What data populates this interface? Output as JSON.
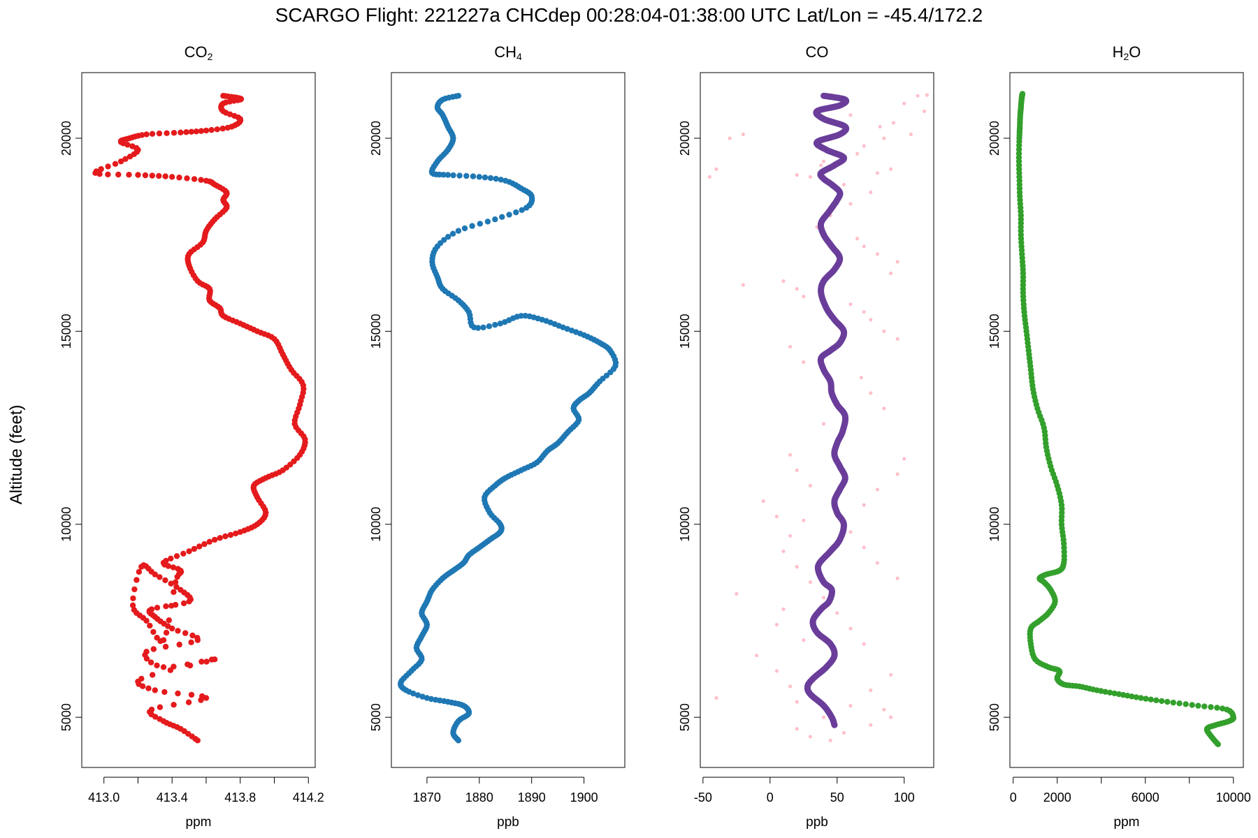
{
  "title": "SCARGO Flight: 221227a  CHCdep  00:28:04-01:38:00 UTC  Lat/Lon = -45.4/172.2",
  "ylabel": "Altitude (feet)",
  "chart_data": [
    {
      "type": "scatter",
      "title": "CO2",
      "title_main": "CO",
      "title_sub": "2",
      "xlabel": "ppm",
      "ylabel": "Altitude (feet)",
      "xlim": [
        412.87,
        414.24
      ],
      "ylim": [
        3700,
        21700
      ],
      "xticks": [
        413.0,
        413.4,
        413.8,
        414.2
      ],
      "xtick_labels": [
        "413.0",
        "413.4",
        "413.8",
        "414.2"
      ],
      "xticks_minor": [
        413.2,
        413.6,
        414.0
      ],
      "yticks": [
        5000,
        10000,
        15000,
        20000
      ],
      "ytick_labels": [
        "5000",
        "10000",
        "15000",
        "20000"
      ],
      "colors": [
        "#e41a1c"
      ],
      "series": [
        {
          "x": [
            413.55,
            413.45,
            413.35,
            413.28,
            413.6,
            413.3,
            413.22,
            413.65,
            413.35,
            413.25,
            413.55,
            413.4,
            413.3,
            413.28,
            413.5,
            413.45,
            413.3,
            413.22,
            413.17,
            413.25,
            413.35,
            413.42,
            413.45,
            413.35,
            413.5,
            413.65,
            413.8,
            413.9,
            413.95,
            413.9,
            413.88,
            413.95,
            414.05,
            414.15,
            414.18,
            414.12,
            414.15,
            414.17,
            414.1,
            414.05,
            414.0,
            413.9,
            413.8,
            413.7,
            413.68,
            413.62,
            413.62,
            413.55,
            413.5,
            413.5,
            413.58,
            413.6,
            413.65,
            413.72,
            413.7,
            413.72,
            413.65,
            413.6,
            413.4,
            413.2,
            412.95,
            413.1,
            413.2,
            413.1,
            413.15,
            413.25,
            413.45,
            413.6,
            413.75,
            413.8,
            413.7,
            413.7,
            413.8,
            413.78,
            413.7
          ],
          "y": [
            4400,
            4700,
            4900,
            5200,
            5500,
            5700,
            6000,
            6500,
            6300,
            6700,
            7000,
            7300,
            7600,
            7800,
            8000,
            8300,
            8700,
            8900,
            7900,
            7500,
            7000,
            8500,
            8800,
            9000,
            9300,
            9600,
            9800,
            10000,
            10300,
            10700,
            11000,
            11200,
            11400,
            11800,
            12200,
            12600,
            13100,
            13600,
            14000,
            14400,
            14800,
            15000,
            15200,
            15400,
            15600,
            15800,
            16100,
            16300,
            16700,
            17000,
            17300,
            17600,
            17900,
            18200,
            18400,
            18600,
            18800,
            18900,
            19000,
            19050,
            19100,
            19400,
            19700,
            19900,
            20000,
            20100,
            20150,
            20200,
            20300,
            20500,
            20700,
            20900,
            21000,
            21050,
            21100
          ]
        }
      ]
    },
    {
      "type": "scatter",
      "title": "CH4",
      "title_main": "CH",
      "title_sub": "4",
      "xlabel": "ppb",
      "ylabel": "",
      "xlim": [
        1863.2,
        1907.8
      ],
      "ylim": [
        3700,
        21700
      ],
      "xticks": [
        1870,
        1880,
        1890,
        1900
      ],
      "xtick_labels": [
        "1870",
        "1880",
        "1890",
        "1900"
      ],
      "xticks_minor": [],
      "yticks": [
        5000,
        10000,
        15000,
        20000
      ],
      "ytick_labels": [
        "5000",
        "10000",
        "15000",
        "20000"
      ],
      "colors": [
        "#1f78b4"
      ],
      "series": [
        {
          "x": [
            1876,
            1875,
            1876,
            1878,
            1877,
            1874,
            1870,
            1866,
            1865,
            1867,
            1869,
            1868,
            1869,
            1870,
            1869,
            1870,
            1871,
            1873,
            1875,
            1877,
            1878,
            1880,
            1882,
            1884,
            1884,
            1882,
            1881,
            1883,
            1885,
            1888,
            1891,
            1893,
            1895,
            1897,
            1899,
            1898,
            1899,
            1901,
            1903,
            1906,
            1905,
            1903,
            1900,
            1896,
            1892,
            1888,
            1884,
            1879,
            1878,
            1876,
            1873,
            1872,
            1871,
            1872,
            1876,
            1883,
            1889,
            1890,
            1888,
            1885,
            1880,
            1874,
            1871,
            1872,
            1874,
            1875,
            1874,
            1873,
            1872,
            1873,
            1876
          ],
          "y": [
            4400,
            4600,
            4900,
            5100,
            5300,
            5400,
            5500,
            5700,
            5900,
            6200,
            6500,
            6800,
            7100,
            7400,
            7700,
            8000,
            8300,
            8600,
            8800,
            9000,
            9200,
            9400,
            9600,
            9800,
            10000,
            10300,
            10700,
            11000,
            11200,
            11400,
            11600,
            11900,
            12100,
            12400,
            12700,
            13000,
            13200,
            13400,
            13700,
            14100,
            14500,
            14700,
            14900,
            15100,
            15300,
            15400,
            15200,
            15100,
            15500,
            15800,
            16100,
            16400,
            16800,
            17200,
            17600,
            17900,
            18200,
            18500,
            18700,
            18900,
            19000,
            19050,
            19100,
            19400,
            19700,
            20000,
            20300,
            20600,
            20800,
            21000,
            21100
          ]
        }
      ]
    },
    {
      "type": "scatter",
      "title": "CO",
      "title_main": "CO",
      "title_sub": "",
      "xlabel": "ppb",
      "ylabel": "",
      "xlim": [
        -52,
        122
      ],
      "ylim": [
        3700,
        21700
      ],
      "xticks": [
        -50,
        0,
        50,
        100
      ],
      "xtick_labels": [
        "-50",
        "0",
        "50",
        "100"
      ],
      "xticks_minor": [],
      "yticks": [
        5000,
        10000,
        15000,
        20000
      ],
      "ytick_labels": [
        "5000",
        "10000",
        "15000",
        "20000"
      ],
      "colors": [
        "#ffc0cb",
        "#6a3d9a"
      ],
      "series": [
        {
          "style": "points",
          "x": [
            110,
            117,
            100,
            115,
            60,
            92,
            82,
            105,
            85,
            70,
            65,
            40,
            38,
            90,
            80,
            20,
            30,
            55,
            75,
            60,
            45,
            35,
            65,
            70,
            -45,
            -30,
            -20,
            -40,
            80,
            95,
            90,
            10,
            20,
            25,
            60,
            70,
            75,
            85,
            95,
            -20,
            15,
            25,
            68,
            75,
            85,
            40,
            50,
            15,
            20,
            30,
            -5,
            5,
            60,
            70,
            80,
            95,
            -25,
            10,
            5,
            25,
            -10,
            5,
            15,
            20,
            85,
            90,
            75,
            55,
            45,
            -40,
            30,
            20,
            40,
            60,
            75,
            90,
            70,
            60,
            50,
            40,
            30,
            20,
            10,
            15,
            25,
            70,
            80,
            95,
            100
          ],
          "y": [
            21100,
            21120,
            20900,
            20700,
            20600,
            20400,
            20300,
            20100,
            20000,
            19800,
            19600,
            19400,
            19300,
            19200,
            19100,
            19050,
            19000,
            18800,
            18600,
            18300,
            18000,
            17700,
            17400,
            17200,
            19000,
            20000,
            20100,
            19200,
            17000,
            16800,
            16500,
            16300,
            16100,
            15900,
            15700,
            15500,
            15300,
            15000,
            14800,
            16200,
            14600,
            14200,
            13800,
            13400,
            13000,
            12600,
            12200,
            11800,
            11400,
            11000,
            10600,
            10200,
            9800,
            9400,
            9000,
            8600,
            8200,
            7800,
            7400,
            7000,
            6600,
            6200,
            5800,
            5400,
            5200,
            5000,
            4800,
            4600,
            4400,
            5500,
            4500,
            4700,
            5000,
            5300,
            5700,
            6100,
            6900,
            7300,
            7700,
            8100,
            8500,
            8900,
            9300,
            9700,
            10100,
            10500,
            10900,
            11300,
            11700
          ]
        },
        {
          "style": "line",
          "x": [
            48,
            46,
            40,
            30,
            28,
            32,
            42,
            48,
            45,
            35,
            32,
            38,
            44,
            46,
            40,
            36,
            37,
            45,
            52,
            55,
            50,
            48,
            52,
            56,
            52,
            48,
            50,
            54,
            56,
            50,
            46,
            45,
            40,
            38,
            45,
            52,
            55,
            48,
            42,
            38,
            40,
            48,
            52,
            46,
            40,
            38,
            44,
            50,
            52,
            46,
            40,
            38,
            48,
            55,
            42,
            35,
            52,
            56,
            40,
            35,
            52,
            56,
            40
          ],
          "y": [
            4800,
            5000,
            5300,
            5600,
            5800,
            6000,
            6300,
            6600,
            6900,
            7200,
            7500,
            7800,
            8000,
            8300,
            8500,
            8800,
            9000,
            9300,
            9600,
            10000,
            10300,
            10600,
            10900,
            11200,
            11500,
            11800,
            12100,
            12400,
            12800,
            13100,
            13400,
            13700,
            14000,
            14300,
            14500,
            14700,
            15000,
            15300,
            15600,
            16000,
            16300,
            16600,
            16900,
            17200,
            17500,
            17800,
            18100,
            18400,
            18600,
            18800,
            18950,
            19100,
            19300,
            19500,
            19700,
            19900,
            20100,
            20300,
            20500,
            20700,
            20850,
            21000,
            21100
          ]
        }
      ]
    },
    {
      "type": "scatter",
      "title": "H2O",
      "title_main": "H",
      "title_sub": "2",
      "title_tail": "O",
      "xlabel": "ppm",
      "ylabel": "",
      "xlim": [
        -150,
        10450
      ],
      "ylim": [
        3700,
        21700
      ],
      "xticks": [
        0,
        2000,
        6000,
        10000
      ],
      "xtick_labels": [
        "0",
        "2000",
        "6000",
        "10000"
      ],
      "xticks_minor": [
        4000,
        8000
      ],
      "yticks": [
        5000,
        10000,
        15000,
        20000
      ],
      "ytick_labels": [
        "5000",
        "10000",
        "15000",
        "20000"
      ],
      "colors": [
        "#33a02c"
      ],
      "series": [
        {
          "x": [
            9300,
            9000,
            8800,
            9200,
            9800,
            10000,
            9700,
            8400,
            7000,
            5800,
            4800,
            3800,
            3000,
            2300,
            2000,
            2100,
            1600,
            1000,
            800,
            800,
            1200,
            1600,
            1900,
            1700,
            1400,
            1200,
            1500,
            2100,
            2300,
            2300,
            2200,
            2200,
            2000,
            1700,
            1500,
            1400,
            1100,
            900,
            800,
            700,
            600,
            500,
            450,
            450,
            400,
            350,
            350,
            300,
            280,
            260,
            280,
            300,
            320,
            350,
            380,
            400,
            420
          ],
          "y": [
            4300,
            4500,
            4700,
            4800,
            4900,
            5000,
            5200,
            5300,
            5400,
            5500,
            5600,
            5700,
            5800,
            5850,
            6000,
            6200,
            6300,
            6500,
            6900,
            7300,
            7500,
            7700,
            8000,
            8300,
            8500,
            8600,
            8700,
            8800,
            9000,
            9500,
            10000,
            10500,
            11000,
            11500,
            12000,
            12500,
            13000,
            13500,
            14000,
            14500,
            15000,
            15500,
            16000,
            16500,
            17000,
            17500,
            18000,
            18500,
            19000,
            19500,
            20000,
            20300,
            20600,
            20800,
            21000,
            21100,
            21150
          ]
        }
      ]
    }
  ]
}
